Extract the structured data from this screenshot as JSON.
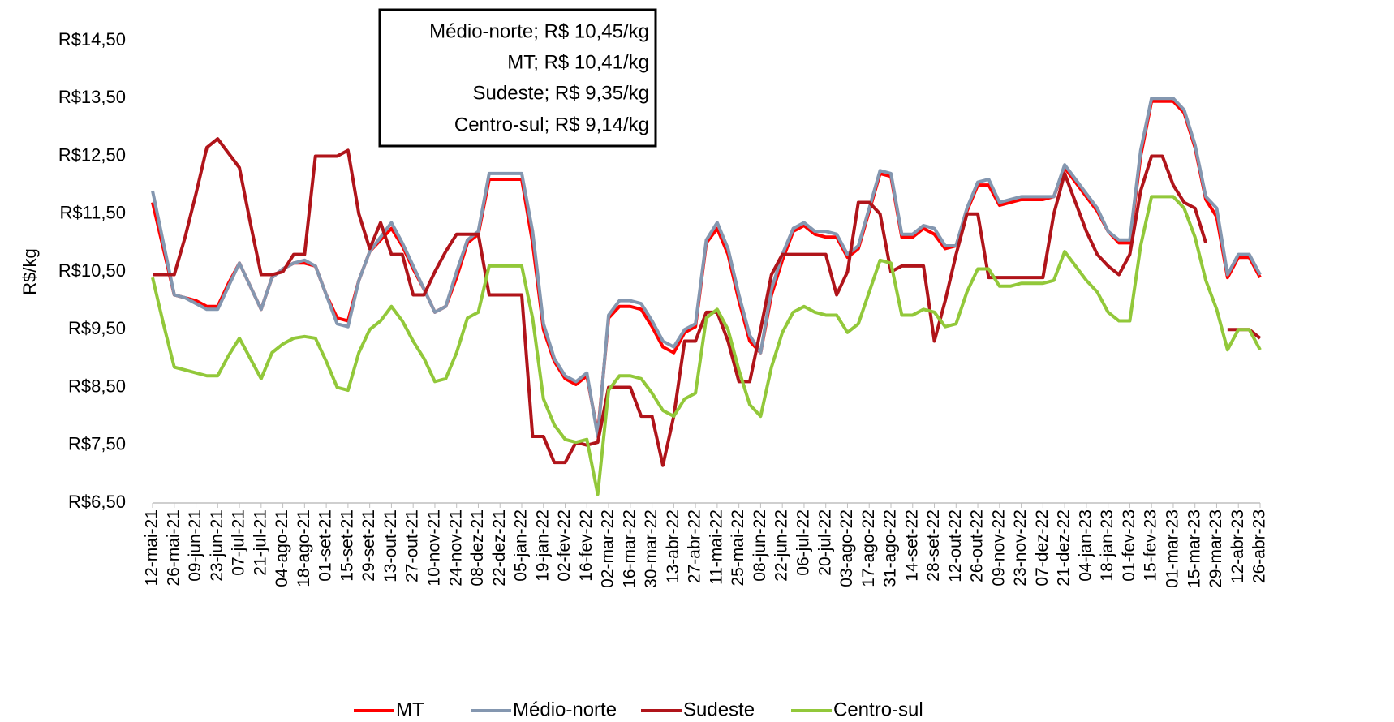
{
  "chart_data": {
    "type": "line",
    "ylabel": "R$/kg",
    "annotations": [
      "Médio-norte; R$ 10,45/kg",
      "MT; R$ 10,41/kg",
      "Sudeste; R$ 9,35/kg",
      "Centro-sul; R$ 9,14/kg"
    ],
    "categories": [
      "12-mai-21",
      null,
      "26-mai-21",
      null,
      "09-jun-21",
      null,
      "23-jun-21",
      null,
      "07-jul-21",
      null,
      "21-jul-21",
      null,
      "04-ago-21",
      null,
      "18-ago-21",
      null,
      "01-set-21",
      null,
      "15-set-21",
      null,
      "29-set-21",
      null,
      "13-out-21",
      null,
      "27-out-21",
      null,
      "10-nov-21",
      null,
      "24-nov-21",
      null,
      "08-dez-21",
      null,
      "22-dez-21",
      null,
      "05-jan-22",
      null,
      "19-jan-22",
      null,
      "02-fev-22",
      null,
      "16-fev-22",
      null,
      "02-mar-22",
      null,
      "16-mar-22",
      null,
      "30-mar-22",
      null,
      "13-abr-22",
      null,
      "27-abr-22",
      null,
      "11-mai-22",
      null,
      "25-mai-22",
      null,
      "08-jun-22",
      null,
      "22-jun-22",
      null,
      "06-jul-22",
      null,
      "20-jul-22",
      null,
      "03-ago-22",
      null,
      "17-ago-22",
      null,
      "31-ago-22",
      null,
      "14-set-22",
      null,
      "28-set-22",
      null,
      "12-out-22",
      null,
      "26-out-22",
      null,
      "09-nov-22",
      null,
      "23-nov-22",
      null,
      "07-dez-22",
      null,
      "21-dez-22",
      null,
      "04-jan-23",
      null,
      "18-jan-23",
      null,
      "01-fev-23",
      null,
      "15-fev-23",
      null,
      "01-mar-23",
      null,
      "15-mar-23",
      null,
      "29-mar-23",
      null,
      "12-abr-23",
      null,
      "26-abr-23"
    ],
    "series": [
      {
        "name": "MT",
        "color": "#ff0000",
        "values": [
          11.7,
          10.9,
          10.1,
          10.05,
          10.0,
          9.9,
          9.9,
          10.3,
          10.65,
          10.25,
          9.85,
          10.4,
          10.55,
          10.65,
          10.65,
          10.6,
          10.1,
          9.7,
          9.65,
          10.35,
          10.85,
          11.05,
          11.25,
          10.95,
          10.55,
          10.2,
          9.8,
          9.9,
          10.4,
          11.0,
          11.15,
          12.1,
          12.1,
          12.1,
          12.1,
          11.0,
          9.5,
          8.95,
          8.65,
          8.55,
          8.7,
          7.7,
          9.7,
          9.9,
          9.9,
          9.85,
          9.55,
          9.2,
          9.1,
          9.45,
          9.55,
          11.0,
          11.25,
          10.8,
          10.0,
          9.3,
          9.1,
          10.1,
          10.7,
          11.2,
          11.3,
          11.15,
          11.1,
          11.1,
          10.75,
          10.9,
          11.55,
          12.2,
          12.15,
          11.1,
          11.1,
          11.25,
          11.15,
          10.9,
          10.95,
          11.55,
          12.0,
          12.0,
          11.65,
          11.7,
          11.75,
          11.75,
          11.75,
          11.8,
          12.3,
          12.05,
          11.8,
          11.55,
          11.2,
          11.0,
          11.0,
          12.5,
          13.45,
          13.45,
          13.45,
          13.25,
          12.65,
          11.75,
          11.45,
          10.4,
          10.75,
          10.75,
          10.4
        ]
      },
      {
        "name": "Médio-norte",
        "color": "#8497b0",
        "values": [
          11.9,
          11.0,
          10.1,
          10.05,
          9.95,
          9.85,
          9.85,
          10.25,
          10.65,
          10.25,
          9.85,
          10.4,
          10.55,
          10.65,
          10.7,
          10.6,
          10.1,
          9.6,
          9.55,
          10.35,
          10.85,
          11.1,
          11.35,
          11.0,
          10.6,
          10.2,
          9.8,
          9.9,
          10.5,
          11.05,
          11.2,
          12.2,
          12.2,
          12.2,
          12.2,
          11.2,
          9.6,
          9.0,
          8.7,
          8.6,
          8.75,
          7.65,
          9.75,
          10.0,
          10.0,
          9.95,
          9.65,
          9.3,
          9.2,
          9.5,
          9.6,
          11.05,
          11.35,
          10.9,
          10.1,
          9.4,
          9.1,
          10.2,
          10.8,
          11.25,
          11.35,
          11.2,
          11.2,
          11.15,
          10.8,
          10.95,
          11.6,
          12.25,
          12.2,
          11.15,
          11.15,
          11.3,
          11.25,
          10.95,
          10.95,
          11.6,
          12.05,
          12.1,
          11.7,
          11.75,
          11.8,
          11.8,
          11.8,
          11.8,
          12.35,
          12.1,
          11.85,
          11.6,
          11.2,
          11.05,
          11.05,
          12.6,
          13.5,
          13.5,
          13.5,
          13.3,
          12.7,
          11.8,
          11.6,
          10.45,
          10.8,
          10.8,
          10.45
        ]
      },
      {
        "name": "Sudeste",
        "color": "#b0141a",
        "values": [
          10.45,
          10.45,
          10.45,
          11.1,
          11.85,
          12.65,
          12.8,
          12.55,
          12.3,
          11.35,
          10.45,
          10.45,
          10.5,
          10.8,
          10.8,
          12.5,
          12.5,
          12.5,
          12.6,
          11.5,
          10.9,
          11.35,
          10.8,
          10.8,
          10.1,
          10.1,
          10.5,
          10.85,
          11.15,
          11.15,
          11.15,
          10.1,
          10.1,
          10.1,
          10.1,
          7.65,
          7.65,
          7.2,
          7.2,
          7.55,
          7.5,
          7.55,
          8.5,
          8.5,
          8.5,
          8.0,
          8.0,
          7.15,
          8.0,
          9.3,
          9.3,
          9.8,
          9.8,
          9.3,
          8.6,
          8.6,
          9.5,
          10.45,
          10.8,
          10.8,
          10.8,
          10.8,
          10.8,
          10.1,
          10.5,
          11.7,
          11.7,
          11.5,
          10.5,
          10.6,
          10.6,
          10.6,
          9.3,
          10.0,
          10.8,
          11.5,
          11.5,
          10.4,
          10.4,
          10.4,
          10.4,
          10.4,
          10.4,
          11.5,
          12.2,
          11.7,
          11.2,
          10.8,
          10.6,
          10.45,
          10.8,
          11.9,
          12.5,
          12.5,
          12.0,
          11.7,
          11.6,
          11.0,
          null,
          9.5,
          9.5,
          9.5,
          9.35
        ]
      },
      {
        "name": "Centro-sul",
        "color": "#92c83a",
        "values": [
          10.4,
          9.6,
          8.85,
          8.8,
          8.75,
          8.7,
          8.7,
          9.05,
          9.35,
          9.0,
          8.65,
          9.1,
          9.25,
          9.35,
          9.38,
          9.35,
          8.95,
          8.5,
          8.45,
          9.1,
          9.5,
          9.65,
          9.9,
          9.65,
          9.3,
          9.0,
          8.6,
          8.65,
          9.1,
          9.7,
          9.8,
          10.6,
          10.6,
          10.6,
          10.6,
          9.7,
          8.3,
          7.85,
          7.6,
          7.55,
          7.6,
          6.65,
          8.45,
          8.7,
          8.7,
          8.65,
          8.4,
          8.1,
          8.0,
          8.3,
          8.4,
          9.7,
          9.85,
          9.5,
          8.8,
          8.2,
          8.0,
          8.85,
          9.45,
          9.8,
          9.9,
          9.8,
          9.75,
          9.75,
          9.45,
          9.6,
          10.15,
          10.7,
          10.65,
          9.75,
          9.75,
          9.85,
          9.8,
          9.55,
          9.6,
          10.15,
          10.55,
          10.55,
          10.25,
          10.25,
          10.3,
          10.3,
          10.3,
          10.35,
          10.85,
          10.6,
          10.35,
          10.15,
          9.8,
          9.65,
          9.65,
          10.95,
          11.8,
          11.8,
          11.8,
          11.6,
          11.1,
          10.35,
          9.85,
          9.15,
          9.5,
          9.5,
          9.15
        ]
      }
    ],
    "ylim": [
      6.5,
      14.5
    ],
    "yticks": [
      {
        "value": 6.5,
        "label": "R$6,50"
      },
      {
        "value": 7.5,
        "label": "R$7,50"
      },
      {
        "value": 8.5,
        "label": "R$8,50"
      },
      {
        "value": 9.5,
        "label": "R$9,50"
      },
      {
        "value": 10.5,
        "label": "R$10,50"
      },
      {
        "value": 11.5,
        "label": "R$11,50"
      },
      {
        "value": 12.5,
        "label": "R$12,50"
      },
      {
        "value": 13.5,
        "label": "R$13,50"
      },
      {
        "value": 14.5,
        "label": "R$14,50"
      }
    ],
    "grid": false,
    "legend": "bottom"
  }
}
